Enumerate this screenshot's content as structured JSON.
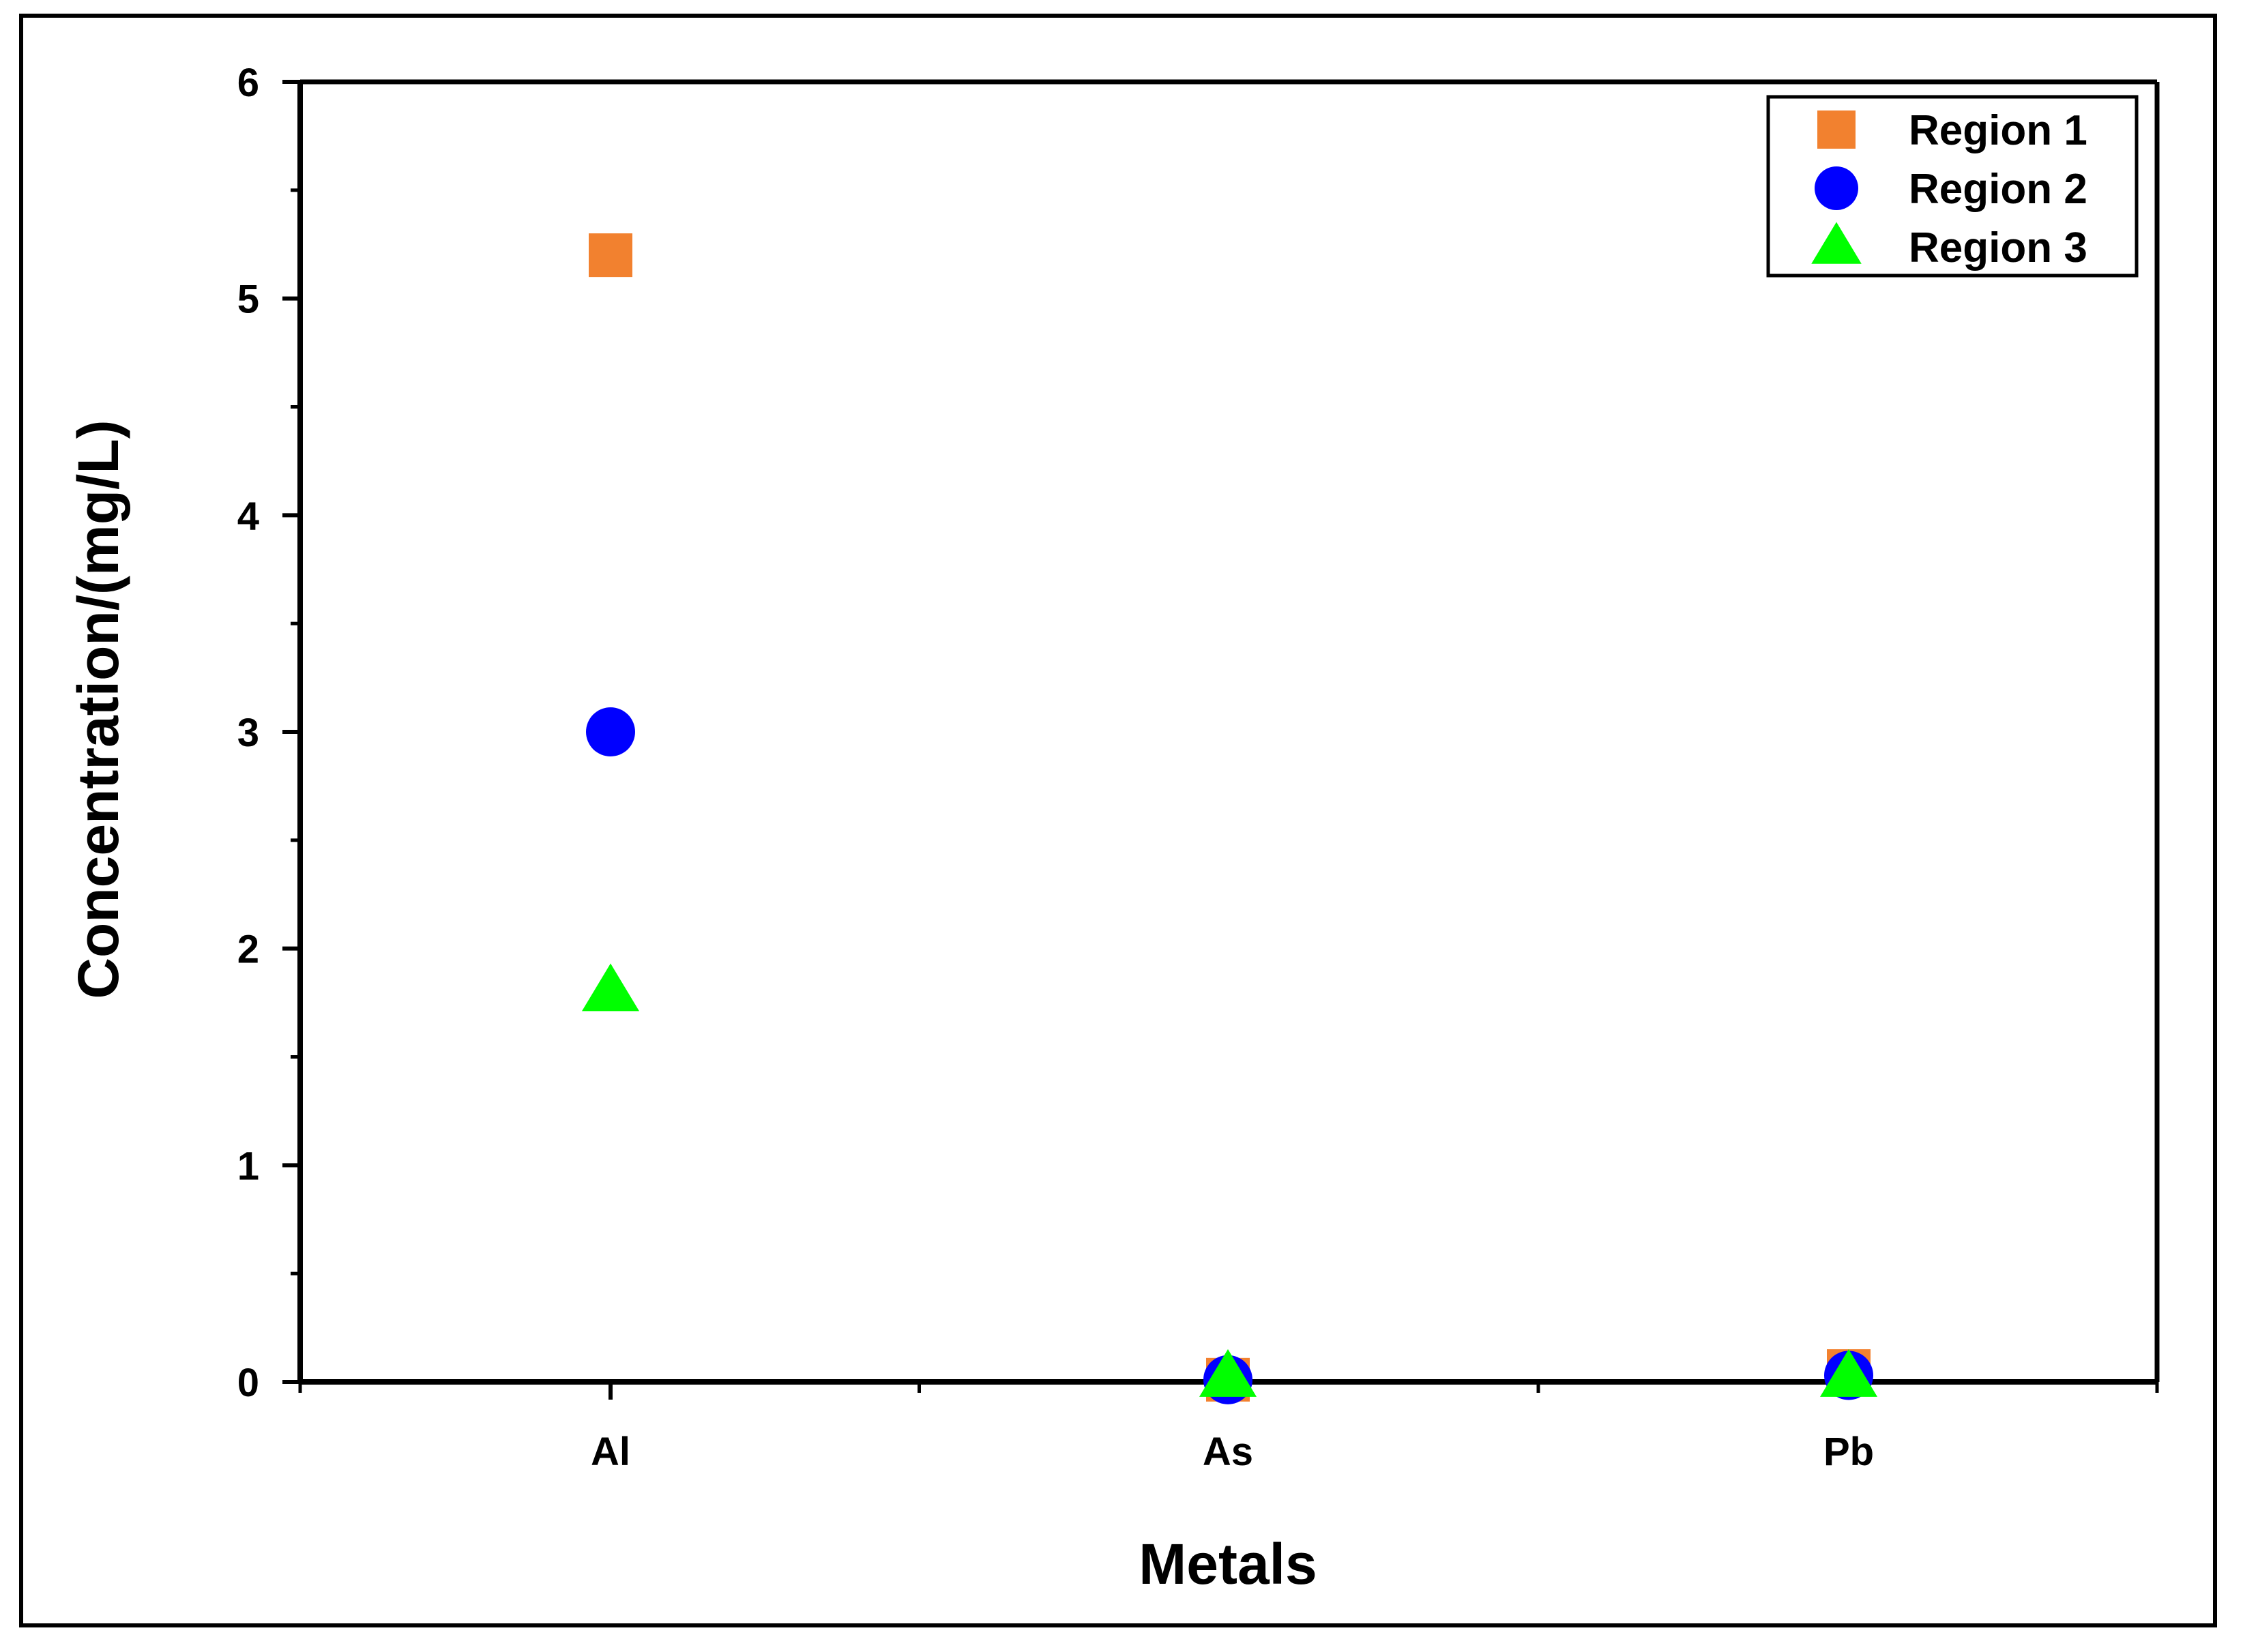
{
  "chart_data": {
    "type": "scatter",
    "title": "",
    "xlabel": "Metals",
    "ylabel": "Concentration/(mg/L)",
    "categories": [
      "Al",
      "As",
      "Pb"
    ],
    "ylim": [
      0,
      6
    ],
    "yticks": [
      0,
      1,
      2,
      3,
      4,
      5,
      6
    ],
    "grid": false,
    "legend_position": "top-right",
    "series": [
      {
        "name": "Region 1",
        "marker": "square",
        "color": "#f2812f",
        "values": [
          5.2,
          0.01,
          0.05
        ]
      },
      {
        "name": "Region 2",
        "marker": "circle",
        "color": "#0000ff",
        "values": [
          3.0,
          0.01,
          0.03
        ]
      },
      {
        "name": "Region 3",
        "marker": "triangle",
        "color": "#00ff00",
        "values": [
          1.8,
          0.02,
          0.02
        ]
      }
    ]
  }
}
